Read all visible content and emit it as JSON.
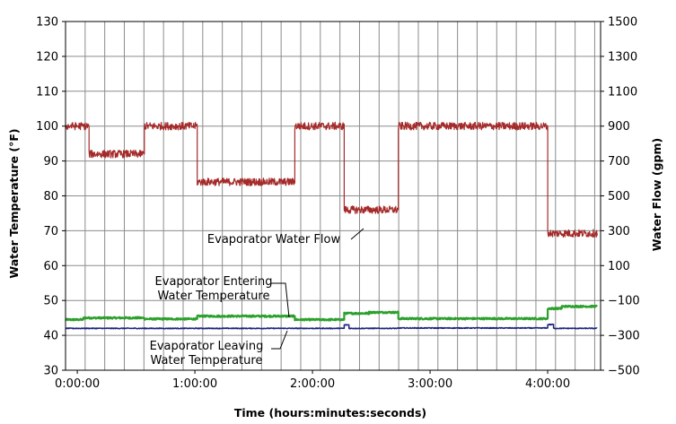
{
  "chart_data": {
    "type": "line",
    "title": "",
    "xlabel": "Time (hours:minutes:seconds)",
    "ylabel_left": "Water Temperature (°F)",
    "ylabel_right": "Water Flow (gpm)",
    "x_unit": "hours",
    "xlim": [
      -0.1,
      4.45
    ],
    "ylim_left": [
      30,
      130
    ],
    "ylim_right": [
      -500,
      1500
    ],
    "x_tick_labels": [
      "0:00:00",
      "1:00:00",
      "2:00:00",
      "3:00:00",
      "4:00:00"
    ],
    "x_tick_values": [
      0,
      1,
      2,
      3,
      4
    ],
    "y_left_ticks": [
      30,
      40,
      50,
      60,
      70,
      80,
      90,
      100,
      110,
      120,
      130
    ],
    "y_right_ticks": [
      -500,
      -300,
      -100,
      100,
      300,
      500,
      700,
      900,
      1100,
      1300,
      1500
    ],
    "grid": true,
    "series": [
      {
        "name": "Evaporator Water Flow",
        "axis": "right",
        "color": "#a52a2a",
        "segments": [
          {
            "x_start": -0.1,
            "x_end": 0.1,
            "value": 900
          },
          {
            "x_start": 0.1,
            "x_end": 0.57,
            "value": 740
          },
          {
            "x_start": 0.57,
            "x_end": 1.02,
            "value": 900
          },
          {
            "x_start": 1.02,
            "x_end": 1.85,
            "value": 580
          },
          {
            "x_start": 1.85,
            "x_end": 2.27,
            "value": 900
          },
          {
            "x_start": 2.27,
            "x_end": 2.73,
            "value": 420
          },
          {
            "x_start": 2.73,
            "x_end": 4.0,
            "value": 900
          },
          {
            "x_start": 4.0,
            "x_end": 4.42,
            "value": 285
          }
        ]
      },
      {
        "name": "Evaporator Entering Water Temperature",
        "axis": "left",
        "color": "#2ca02c",
        "segments": [
          {
            "x_start": -0.1,
            "x_end": 0.05,
            "value": 44.5
          },
          {
            "x_start": 0.05,
            "x_end": 0.57,
            "value": 45.0
          },
          {
            "x_start": 0.57,
            "x_end": 1.02,
            "value": 44.7
          },
          {
            "x_start": 1.02,
            "x_end": 1.85,
            "value": 45.5
          },
          {
            "x_start": 1.85,
            "x_end": 2.27,
            "value": 44.5
          },
          {
            "x_start": 2.27,
            "x_end": 2.48,
            "value": 46.3
          },
          {
            "x_start": 2.48,
            "x_end": 2.73,
            "value": 46.6
          },
          {
            "x_start": 2.73,
            "x_end": 4.0,
            "value": 44.8
          },
          {
            "x_start": 4.0,
            "x_end": 4.12,
            "value": 47.7
          },
          {
            "x_start": 4.12,
            "x_end": 4.42,
            "value": 48.3
          }
        ]
      },
      {
        "name": "Evaporator Leaving Water Temperature",
        "axis": "left",
        "color": "#1a237e",
        "segments": [
          {
            "x_start": -0.1,
            "x_end": 2.27,
            "value": 42.0
          },
          {
            "x_start": 2.27,
            "x_end": 2.31,
            "value": 43.0
          },
          {
            "x_start": 2.31,
            "x_end": 2.73,
            "value": 42.0
          },
          {
            "x_start": 2.73,
            "x_end": 4.0,
            "value": 42.1
          },
          {
            "x_start": 4.0,
            "x_end": 4.05,
            "value": 43.1
          },
          {
            "x_start": 4.05,
            "x_end": 4.42,
            "value": 42.0
          }
        ]
      }
    ],
    "annotations": [
      {
        "lines": [
          "Evaporator Water Flow"
        ],
        "target_series": 0
      },
      {
        "lines": [
          "Evaporator Entering",
          "Water Temperature"
        ],
        "target_series": 1
      },
      {
        "lines": [
          "Evaporator Leaving",
          "Water Temperature"
        ],
        "target_series": 2
      }
    ]
  }
}
